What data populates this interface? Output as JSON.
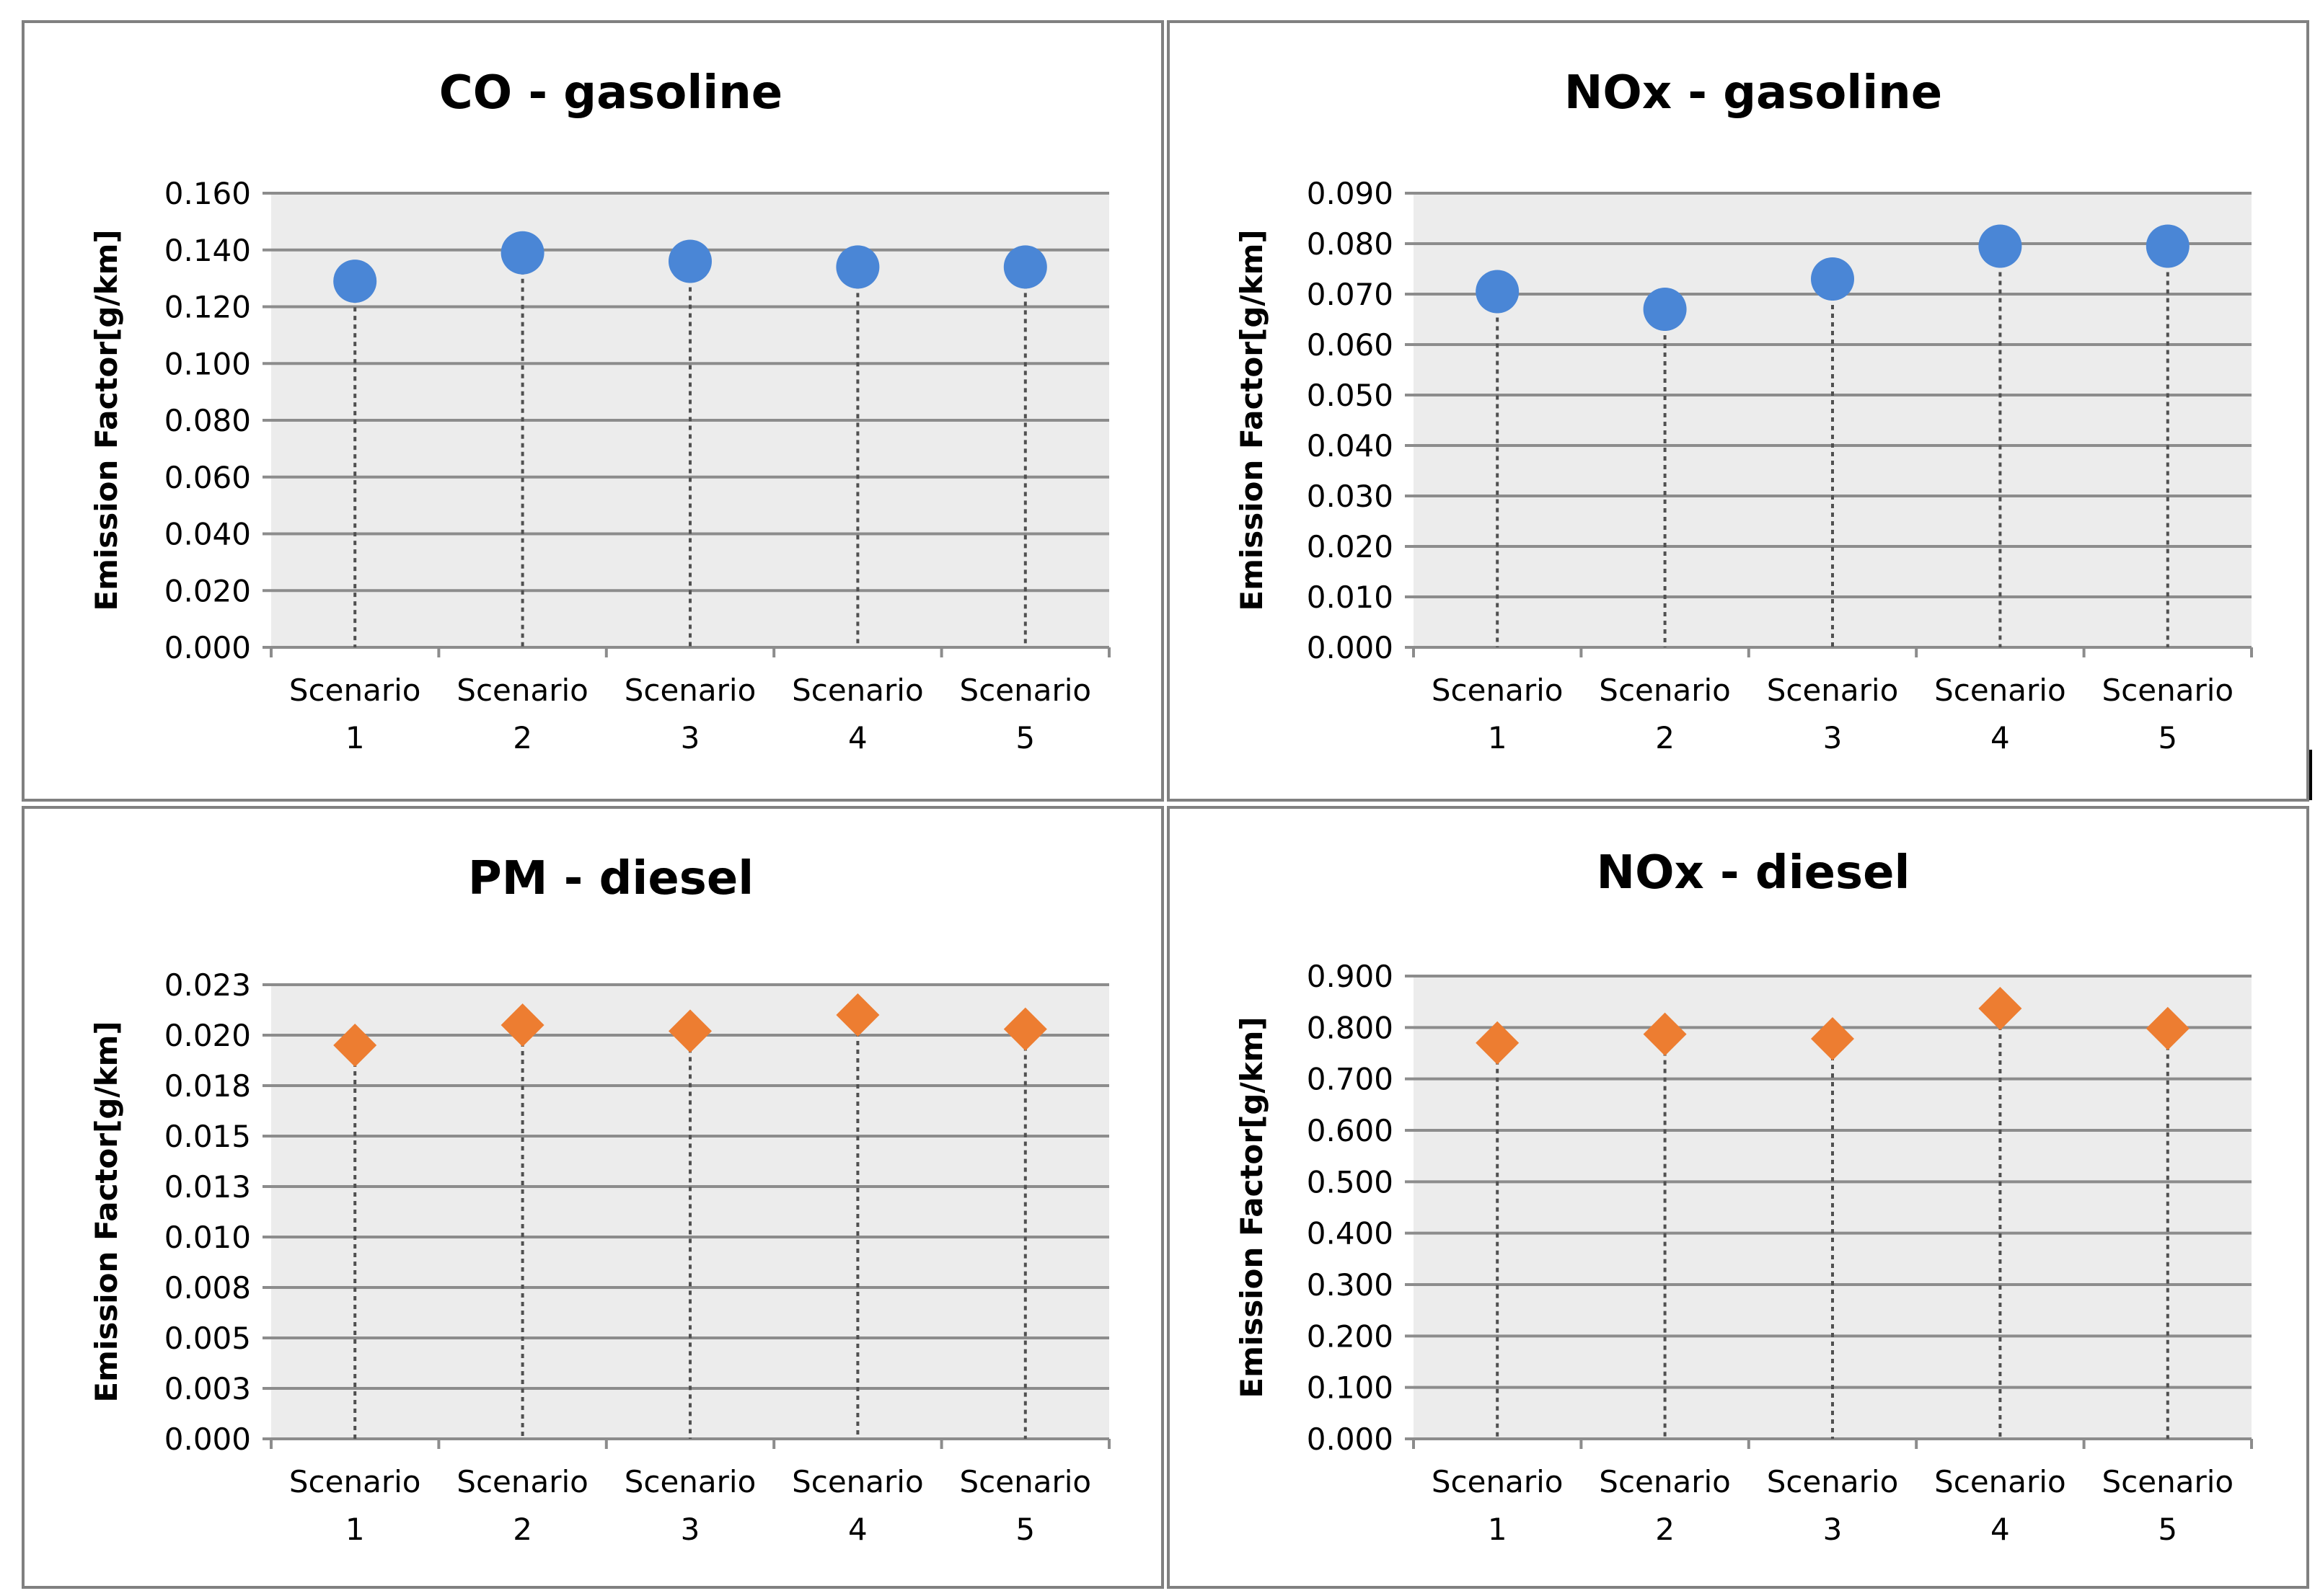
{
  "chart_data": [
    {
      "type": "scatter",
      "title": "CO - gasoline",
      "ylabel": "Emission Factor[g/km]",
      "xlabel": "",
      "categories": [
        [
          "Scenario",
          "1"
        ],
        [
          "Scenario",
          "2"
        ],
        [
          "Scenario",
          "3"
        ],
        [
          "Scenario",
          "4"
        ],
        [
          "Scenario",
          "5"
        ]
      ],
      "values": [
        0.129,
        0.139,
        0.136,
        0.134,
        0.134
      ],
      "ylim": [
        0,
        0.16
      ],
      "yticks": [
        "0.000",
        "0.020",
        "0.040",
        "0.060",
        "0.080",
        "0.100",
        "0.120",
        "0.140",
        "0.160"
      ],
      "marker": "circle",
      "color": "#4a86d6",
      "drop_lines": true,
      "grid": true
    },
    {
      "type": "scatter",
      "title": "NOx - gasoline",
      "ylabel": "Emission Factor[g/km]",
      "xlabel": "",
      "categories": [
        [
          "Scenario",
          "1"
        ],
        [
          "Scenario",
          "2"
        ],
        [
          "Scenario",
          "3"
        ],
        [
          "Scenario",
          "4"
        ],
        [
          "Scenario",
          "5"
        ]
      ],
      "values": [
        0.0705,
        0.067,
        0.073,
        0.0795,
        0.0795
      ],
      "ylim": [
        0,
        0.09
      ],
      "yticks": [
        "0.000",
        "0.010",
        "0.020",
        "0.030",
        "0.040",
        "0.050",
        "0.060",
        "0.070",
        "0.080",
        "0.090"
      ],
      "marker": "circle",
      "color": "#4a86d6",
      "drop_lines": true,
      "grid": true
    },
    {
      "type": "scatter",
      "title": "PM - diesel",
      "ylabel": "Emission Factor[g/km]",
      "xlabel": "",
      "categories": [
        [
          "Scenario",
          "1"
        ],
        [
          "Scenario",
          "2"
        ],
        [
          "Scenario",
          "3"
        ],
        [
          "Scenario",
          "4"
        ],
        [
          "Scenario",
          "5"
        ]
      ],
      "values": [
        0.0195,
        0.0205,
        0.0202,
        0.021,
        0.0203
      ],
      "ylim": [
        0,
        0.0225
      ],
      "yticks": [
        "0.000",
        "0.003",
        "0.005",
        "0.008",
        "0.010",
        "0.013",
        "0.015",
        "0.018",
        "0.020",
        "0.023"
      ],
      "marker": "diamond",
      "color": "#ed7d31",
      "drop_lines": true,
      "grid": true
    },
    {
      "type": "scatter",
      "title": "NOx - diesel",
      "ylabel": "Emission Factor[g/km]",
      "xlabel": "",
      "categories": [
        [
          "Scenario",
          "1"
        ],
        [
          "Scenario",
          "2"
        ],
        [
          "Scenario",
          "3"
        ],
        [
          "Scenario",
          "4"
        ],
        [
          "Scenario",
          "5"
        ]
      ],
      "values": [
        0.77,
        0.787,
        0.778,
        0.837,
        0.798
      ],
      "ylim": [
        0,
        0.9
      ],
      "yticks": [
        "0.000",
        "0.100",
        "0.200",
        "0.300",
        "0.400",
        "0.500",
        "0.600",
        "0.700",
        "0.800",
        "0.900"
      ],
      "marker": "diamond",
      "color": "#ed7d31",
      "drop_lines": true,
      "grid": true
    }
  ]
}
